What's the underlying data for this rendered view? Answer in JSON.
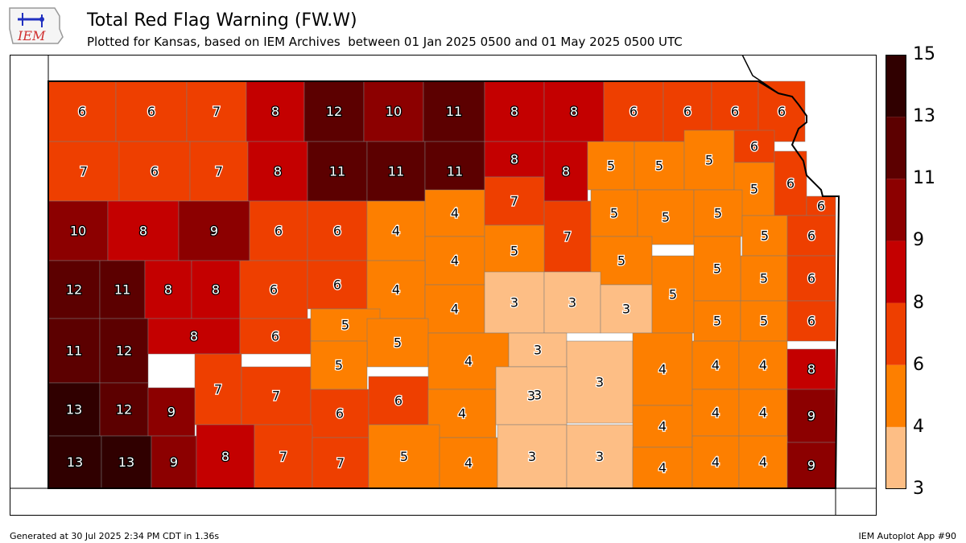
{
  "logo": {
    "text": "IEM"
  },
  "header": {
    "title": "Total Red Flag Warning (FW.W)",
    "subtitle": "Plotted for Kansas, based on IEM Archives  between 01 Jan 2025 0500 and 01 May 2025 0500 UTC"
  },
  "footer": {
    "generated": "Generated at 30 Jul 2025 2:34 PM CDT in 1.36s",
    "app": "IEM Autoplot App #90"
  },
  "colors": {
    "bin_3_4": "#fdbe85",
    "bin_4_6": "#fd7f00",
    "bin_6_8": "#ee3f00",
    "bin_8_9": "#c40000",
    "bin_9_11": "#8c0000",
    "bin_11_13": "#5c0000",
    "bin_13_15": "#300000"
  },
  "colorbar": {
    "ticks": [
      "3",
      "4",
      "6",
      "8",
      "9",
      "11",
      "13",
      "15"
    ],
    "bins": [
      {
        "from": 3,
        "to": 4,
        "color": "#fdbe85"
      },
      {
        "from": 4,
        "to": 6,
        "color": "#fd7f00"
      },
      {
        "from": 6,
        "to": 8,
        "color": "#ee3f00"
      },
      {
        "from": 8,
        "to": 9,
        "color": "#c40000"
      },
      {
        "from": 9,
        "to": 11,
        "color": "#8c0000"
      },
      {
        "from": 11,
        "to": 13,
        "color": "#5c0000"
      },
      {
        "from": 13,
        "to": 15,
        "color": "#300000"
      }
    ]
  },
  "counties": [
    {
      "v": 6
    },
    {
      "v": 6
    },
    {
      "v": 7
    },
    {
      "v": 8
    },
    {
      "v": 12
    },
    {
      "v": 10
    },
    {
      "v": 11
    },
    {
      "v": 8
    },
    {
      "v": 8
    },
    {
      "v": 6
    },
    {
      "v": 6
    },
    {
      "v": 6
    },
    {
      "v": 6
    },
    {
      "v": 7
    },
    {
      "v": 6
    },
    {
      "v": 7
    },
    {
      "v": 8
    },
    {
      "v": 11
    },
    {
      "v": 11
    },
    {
      "v": 11
    },
    {
      "v": 8
    },
    {
      "v": 8
    },
    {
      "v": 5
    },
    {
      "v": 5
    },
    {
      "v": 5
    },
    {
      "v": 6
    },
    {
      "v": 5
    },
    {
      "v": 6
    },
    {
      "v": 6
    },
    {
      "v": 10
    },
    {
      "v": 8
    },
    {
      "v": 9
    },
    {
      "v": 6
    },
    {
      "v": 6
    },
    {
      "v": 4
    },
    {
      "v": 4
    },
    {
      "v": 7
    },
    {
      "v": 7
    },
    {
      "v": 5
    },
    {
      "v": 5
    },
    {
      "v": 5
    },
    {
      "v": 5
    },
    {
      "v": 6
    },
    {
      "v": 4
    },
    {
      "v": 5
    },
    {
      "v": 5
    },
    {
      "v": 5
    },
    {
      "v": 12
    },
    {
      "v": 11
    },
    {
      "v": 8
    },
    {
      "v": 8
    },
    {
      "v": 6
    },
    {
      "v": 6
    },
    {
      "v": 4
    },
    {
      "v": 4
    },
    {
      "v": 3
    },
    {
      "v": 3
    },
    {
      "v": 3
    },
    {
      "v": 5
    },
    {
      "v": 5
    },
    {
      "v": 6
    },
    {
      "v": 11
    },
    {
      "v": 12
    },
    {
      "v": 8
    },
    {
      "v": 6
    },
    {
      "v": 5
    },
    {
      "v": 5
    },
    {
      "v": 4
    },
    {
      "v": 3
    },
    {
      "v": 5
    },
    {
      "v": 5
    },
    {
      "v": 6
    },
    {
      "v": 7
    },
    {
      "v": 7
    },
    {
      "v": 5
    },
    {
      "v": 3
    },
    {
      "v": 3
    },
    {
      "v": 4
    },
    {
      "v": 4
    },
    {
      "v": 4
    },
    {
      "v": 8
    },
    {
      "v": 13
    },
    {
      "v": 12
    },
    {
      "v": 9
    },
    {
      "v": 6
    },
    {
      "v": 6
    },
    {
      "v": 4
    },
    {
      "v": 3
    },
    {
      "v": 4
    },
    {
      "v": 4
    },
    {
      "v": 4
    },
    {
      "v": 9
    },
    {
      "v": 13
    },
    {
      "v": 13
    },
    {
      "v": 9
    },
    {
      "v": 8
    },
    {
      "v": 7
    },
    {
      "v": 7
    },
    {
      "v": 5
    },
    {
      "v": 4
    },
    {
      "v": 3
    },
    {
      "v": 3
    },
    {
      "v": 4
    },
    {
      "v": 4
    },
    {
      "v": 4
    },
    {
      "v": 9
    }
  ]
}
